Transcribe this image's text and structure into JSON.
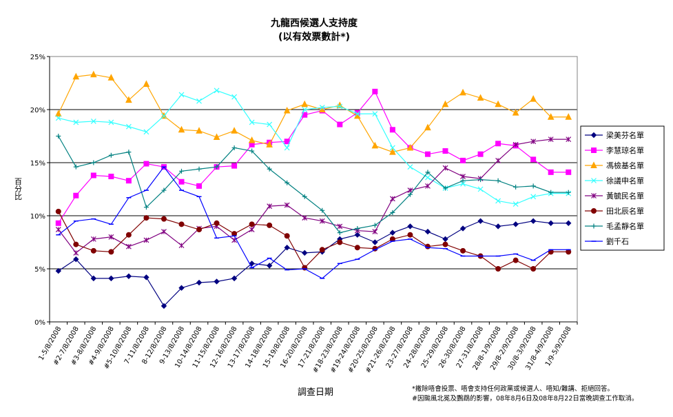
{
  "chart_data": {
    "type": "line",
    "title": "九龍西候選人支持度",
    "subtitle": "(以有效票數計*)",
    "xlabel": "調查日期",
    "ylabel": "百分比",
    "ylim": [
      0,
      25
    ],
    "y_ticks": [
      "0%",
      "5%",
      "10%",
      "15%",
      "20%",
      "25%"
    ],
    "y_tick_values": [
      0,
      5,
      10,
      15,
      20,
      25
    ],
    "grid": true,
    "legend_position": "right",
    "categories": [
      "1-5/8/2008",
      "#2-7/8/2008",
      "#3-8/8/2008",
      "#4-9/8/2008",
      "#5-10/8/2008",
      "7-11/8/2008",
      "8-12/8/2008",
      "9-13/8/2008",
      "10-14/8/2008",
      "11-15/8/2008",
      "12-16/8/2008",
      "13-17/8/2008",
      "14-18/8/2008",
      "15-19/8/2008",
      "16-20/8/2008",
      "17-21/8/2008",
      "#18-23/8/2008",
      "#19-24/8/2008",
      "#20-25/8/2008",
      "#21-26/8/2008",
      "23-27/8/2008",
      "24-28/8/2008",
      "25-29/8/2008",
      "26-30/8/2008",
      "27-31/8/2008",
      "28/8-1/9/2008",
      "29/8-2/9/2008",
      "30/8-3/9/2008",
      "31/8-4/9/2008",
      "1/9-5/9/2008"
    ],
    "series": [
      {
        "name": "梁美芬名單",
        "color": "#000080",
        "marker": "diamond",
        "values": [
          4.8,
          5.9,
          4.1,
          4.1,
          4.3,
          4.2,
          1.5,
          3.2,
          3.7,
          3.8,
          4.1,
          5.5,
          5.3,
          7.0,
          6.5,
          6.6,
          7.8,
          8.2,
          7.5,
          8.4,
          9.0,
          8.5,
          7.8,
          8.8,
          9.5,
          9.0,
          9.2,
          9.5,
          9.3,
          9.3
        ]
      },
      {
        "name": "李慧琼名單",
        "color": "#ff00ff",
        "marker": "square",
        "values": [
          9.3,
          11.9,
          13.8,
          13.7,
          13.3,
          14.9,
          14.6,
          13.2,
          12.8,
          14.6,
          14.7,
          16.7,
          16.9,
          17.0,
          19.5,
          19.9,
          18.6,
          19.7,
          21.7,
          18.1,
          16.4,
          15.8,
          16.1,
          15.2,
          15.8,
          16.8,
          16.6,
          15.3,
          14.1,
          14.1
        ]
      },
      {
        "name": "馮檢基名單",
        "color": "#ffa500",
        "marker": "triangle",
        "values": [
          19.6,
          23.1,
          23.3,
          23.0,
          20.9,
          22.4,
          19.4,
          18.1,
          18.0,
          17.4,
          18.0,
          17.1,
          16.7,
          19.9,
          20.5,
          20.0,
          20.4,
          19.4,
          16.6,
          16.0,
          16.4,
          18.3,
          20.5,
          21.6,
          21.1,
          20.5,
          19.7,
          21.0,
          19.3,
          19.3
        ]
      },
      {
        "name": "徐議申名單",
        "color": "#33ffff",
        "marker": "x",
        "values": [
          19.2,
          18.8,
          18.9,
          18.8,
          18.4,
          17.9,
          19.4,
          21.4,
          20.8,
          21.8,
          21.2,
          18.8,
          18.6,
          16.4,
          20.0,
          20.2,
          20.3,
          19.6,
          19.6,
          16.4,
          14.6,
          13.6,
          12.6,
          13.0,
          12.5,
          11.4,
          11.1,
          11.8,
          12.1,
          12.1
        ]
      },
      {
        "name": "黃毓民名單",
        "color": "#800080",
        "marker": "star",
        "values": [
          8.7,
          6.5,
          7.8,
          8.0,
          7.1,
          7.7,
          8.5,
          7.2,
          8.8,
          9.0,
          7.7,
          8.7,
          10.9,
          11.0,
          9.8,
          9.5,
          9.0,
          8.6,
          8.5,
          11.6,
          12.4,
          12.8,
          14.5,
          13.7,
          13.5,
          15.2,
          16.7,
          17.0,
          17.2,
          17.2
        ]
      },
      {
        "name": "田北辰名單",
        "color": "#800000",
        "marker": "circle",
        "values": [
          10.4,
          7.3,
          6.7,
          6.6,
          8.2,
          9.8,
          9.7,
          9.2,
          8.7,
          9.3,
          8.3,
          9.2,
          9.1,
          8.1,
          5.1,
          6.8,
          7.5,
          7.0,
          6.9,
          7.8,
          8.2,
          7.1,
          7.3,
          6.7,
          6.2,
          5.0,
          5.8,
          5.0,
          6.6,
          6.6
        ]
      },
      {
        "name": "毛孟靜名單",
        "color": "#008080",
        "marker": "plus",
        "values": [
          17.5,
          14.6,
          15.0,
          15.7,
          16.0,
          10.8,
          12.4,
          14.2,
          14.4,
          14.6,
          16.4,
          16.1,
          14.4,
          13.1,
          11.8,
          10.5,
          8.4,
          8.8,
          9.1,
          10.3,
          12.0,
          14.1,
          12.6,
          13.3,
          13.4,
          13.3,
          12.7,
          12.8,
          12.2,
          12.2
        ]
      },
      {
        "name": "劉千石",
        "color": "#0000ff",
        "marker": "dash",
        "values": [
          8.2,
          9.5,
          9.7,
          9.2,
          11.7,
          12.4,
          14.6,
          12.4,
          11.8,
          7.9,
          8.1,
          5.1,
          6.0,
          4.9,
          5.0,
          4.1,
          5.5,
          5.9,
          6.8,
          7.6,
          7.8,
          7.0,
          6.9,
          6.2,
          6.2,
          6.2,
          6.4,
          5.8,
          6.8,
          6.8
        ]
      }
    ],
    "footnotes": [
      "*撇除唔會投票、唔會支持任何政黨或候選人、唔知/難講、拒絕回答。",
      "#因颱風北冕及鸚鵡的影響，08年8月6日及08年8月22日當晚調查工作取消。"
    ]
  }
}
